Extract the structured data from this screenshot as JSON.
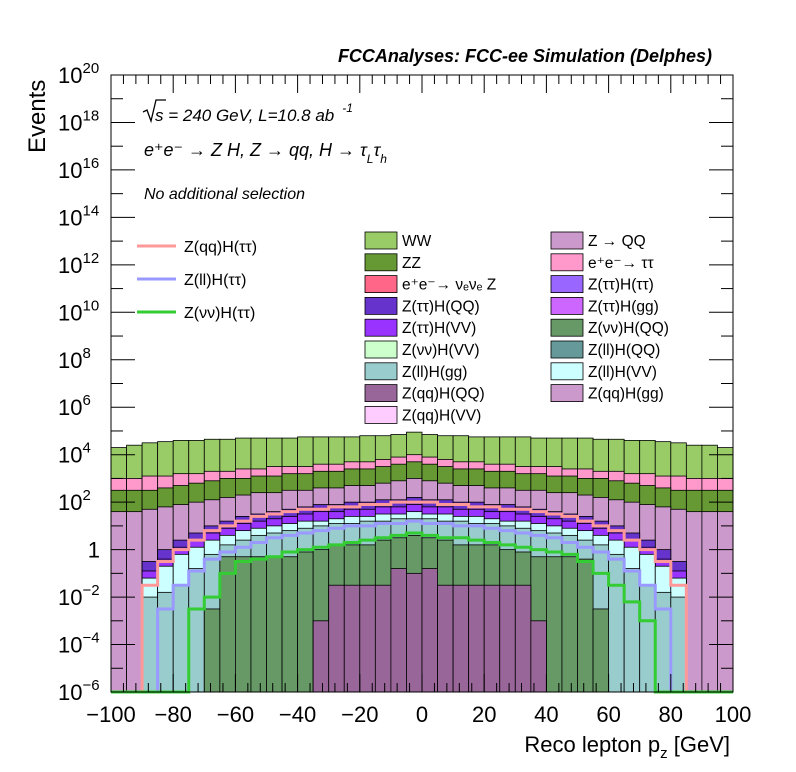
{
  "chart_data": {
    "type": "bar",
    "stacked": true,
    "title": "FCCAnalyses: FCC-ee Simulation (Delphes)",
    "xlabel_main": "Reco lepton p",
    "xlabel_sub": "z",
    "xlabel_unit": " [GeV]",
    "ylabel": "Events",
    "xlim": [
      -100,
      100
    ],
    "ylim": [
      1e-06,
      1e+20
    ],
    "yscale": "log",
    "x_ticks": [
      -100,
      -80,
      -60,
      -40,
      -20,
      0,
      20,
      40,
      60,
      80,
      100
    ],
    "x_tick_labels": [
      "−100",
      "−80",
      "−60",
      "−40",
      "−20",
      "0",
      "20",
      "40",
      "60",
      "80",
      "100"
    ],
    "y_tick_exponents": [
      -6,
      -4,
      -2,
      0,
      2,
      4,
      6,
      8,
      10,
      12,
      14,
      16,
      18,
      20
    ],
    "y_tick_labels": [
      {
        "base": "10",
        "exp": "−6"
      },
      {
        "base": "10",
        "exp": "−4"
      },
      {
        "base": "10",
        "exp": "−2"
      },
      {
        "base": "1",
        "exp": ""
      },
      {
        "base": "10",
        "exp": "2"
      },
      {
        "base": "10",
        "exp": "4"
      },
      {
        "base": "10",
        "exp": "6"
      },
      {
        "base": "10",
        "exp": "8"
      },
      {
        "base": "10",
        "exp": "10"
      },
      {
        "base": "10",
        "exp": "12"
      },
      {
        "base": "10",
        "exp": "14"
      },
      {
        "base": "10",
        "exp": "16"
      },
      {
        "base": "10",
        "exp": "18"
      },
      {
        "base": "10",
        "exp": "20"
      }
    ],
    "annotations": {
      "energy": "s = 240 GeV, L=10.8 ab",
      "lumi_exp": "-1",
      "process_line": "e⁺e⁻ → Z H, Z → qq, H → τ",
      "process_sub1": "L",
      "process_tau2": "τ",
      "process_sub2": "h",
      "selection": "No additional selection"
    },
    "legend_lines": [
      {
        "name": "Z(qq)H(ττ)",
        "color": "#ff9999"
      },
      {
        "name": "Z(ll)H(ττ)",
        "color": "#9999ff"
      },
      {
        "name": "Z(νν)H(ττ)",
        "color": "#33cc33"
      }
    ],
    "legend_fills": [
      {
        "name": "WW",
        "color": "#99cc66"
      },
      {
        "name": "ZZ",
        "color": "#669933"
      },
      {
        "name": "e⁺e⁻→ νₑνₑ Z",
        "color": "#ff6688"
      },
      {
        "name": "Z(ττ)H(QQ)",
        "color": "#6633cc"
      },
      {
        "name": "Z(ττ)H(VV)",
        "color": "#9933ff"
      },
      {
        "name": "Z(νν)H(VV)",
        "color": "#ccffcc"
      },
      {
        "name": "Z(ll)H(gg)",
        "color": "#99cccc"
      },
      {
        "name": "Z(qq)H(QQ)",
        "color": "#996699"
      },
      {
        "name": "Z(qq)H(VV)",
        "color": "#ffccff"
      },
      {
        "name": "Z → QQ",
        "color": "#cc99cc"
      },
      {
        "name": "e⁺e⁻→ ττ",
        "color": "#ff99cc"
      },
      {
        "name": "Z(ττ)H(ττ)",
        "color": "#9966ff"
      },
      {
        "name": "Z(ττ)H(gg)",
        "color": "#cc66ff"
      },
      {
        "name": "Z(νν)H(QQ)",
        "color": "#669966"
      },
      {
        "name": "Z(ll)H(QQ)",
        "color": "#669999"
      },
      {
        "name": "Z(ll)H(VV)",
        "color": "#ccffff"
      },
      {
        "name": "Z(qq)H(gg)",
        "color": "#cc99cc"
      }
    ],
    "bin_centers": [
      -97.5,
      -92.5,
      -87.5,
      -82.5,
      -77.5,
      -72.5,
      -67.5,
      -62.5,
      -57.5,
      -52.5,
      -47.5,
      -42.5,
      -37.5,
      -32.5,
      -27.5,
      -22.5,
      -17.5,
      -12.5,
      -7.5,
      -2.5,
      2.5,
      7.5,
      12.5,
      17.5,
      22.5,
      27.5,
      32.5,
      37.5,
      42.5,
      47.5,
      52.5,
      57.5,
      62.5,
      67.5,
      72.5,
      77.5,
      82.5,
      87.5,
      92.5,
      97.5
    ],
    "stack_bands_log10": [
      {
        "name": "Z(qq)H(QQ)",
        "top": [
          -6,
          -6,
          -6,
          -6,
          -6,
          -6,
          -6,
          -6,
          -6,
          -6,
          -6,
          -6,
          -6,
          -3,
          -1.5,
          -1.5,
          -1.5,
          -1.5,
          -0.8,
          -1.0,
          -0.8,
          -1.5,
          -1.5,
          -1.5,
          -1.5,
          -1.5,
          -1.5,
          -3,
          -6,
          -6,
          -6,
          -6,
          -6,
          -6,
          -6,
          -6,
          -6,
          -6,
          -6,
          -6
        ]
      },
      {
        "name": "Z(νν)H(QQ)",
        "top": [
          -6,
          -6,
          -6,
          -6,
          -6,
          -6,
          -2.5,
          -0.3,
          -0.3,
          -0.3,
          -0.3,
          -0.3,
          -0.1,
          0.0,
          0.2,
          0.2,
          0.2,
          0.4,
          0.5,
          0.6,
          0.5,
          0.4,
          0.2,
          0.2,
          0.2,
          0.0,
          -0.1,
          -0.3,
          -0.3,
          -0.3,
          -0.4,
          -2.5,
          -6,
          -6,
          -6,
          -6,
          -6,
          -6,
          -6,
          -6
        ]
      },
      {
        "name": "Z(ll)H(gg)",
        "top": [
          -6,
          -6,
          -2,
          -1.8,
          -1.5,
          -0.8,
          -0.2,
          0.2,
          0.4,
          0.6,
          0.7,
          0.8,
          0.9,
          1.0,
          1.1,
          1.1,
          1.2,
          1.2,
          1.3,
          1.3,
          1.3,
          1.2,
          1.2,
          1.1,
          1.1,
          1.0,
          0.9,
          0.8,
          0.7,
          0.6,
          0.4,
          0.2,
          -0.2,
          -0.8,
          -1.5,
          -1.8,
          -2,
          -6,
          -6,
          -6
        ]
      },
      {
        "name": "Z(ll)H(VV)",
        "top": [
          -6,
          -6,
          -1.2,
          -0.7,
          -0.2,
          0.1,
          0.4,
          0.6,
          0.8,
          0.9,
          1.0,
          1.1,
          1.2,
          1.2,
          1.3,
          1.4,
          1.4,
          1.5,
          1.5,
          1.6,
          1.5,
          1.5,
          1.4,
          1.4,
          1.3,
          1.2,
          1.2,
          1.1,
          1.0,
          0.9,
          0.8,
          0.6,
          0.4,
          0.1,
          -0.2,
          -0.7,
          -1.2,
          -6,
          -6,
          -6
        ]
      },
      {
        "name": "Z(ττ)H(VV)",
        "top": [
          -6,
          -6,
          -0.9,
          -0.4,
          0.1,
          0.4,
          0.7,
          0.9,
          1.1,
          1.2,
          1.3,
          1.4,
          1.5,
          1.6,
          1.6,
          1.7,
          1.7,
          1.8,
          1.8,
          1.9,
          1.8,
          1.8,
          1.7,
          1.7,
          1.6,
          1.6,
          1.5,
          1.4,
          1.3,
          1.2,
          1.1,
          0.9,
          0.7,
          0.4,
          0.1,
          -0.4,
          -0.9,
          -6,
          -6,
          -6
        ]
      },
      {
        "name": "Z(ττ)H(QQ)",
        "top": [
          -6,
          -6,
          -0.5,
          0.0,
          0.4,
          0.7,
          1.0,
          1.2,
          1.4,
          1.5,
          1.6,
          1.7,
          1.8,
          1.9,
          1.9,
          2.0,
          2.0,
          2.1,
          2.1,
          2.2,
          2.1,
          2.1,
          2.0,
          2.0,
          1.9,
          1.9,
          1.8,
          1.7,
          1.6,
          1.5,
          1.4,
          1.2,
          1.0,
          0.7,
          0.4,
          0.0,
          -0.5,
          -6,
          -6,
          -6
        ]
      },
      {
        "name": "Z → QQ",
        "top": [
          1.6,
          1.6,
          1.7,
          1.8,
          1.9,
          2.0,
          2.1,
          2.2,
          2.3,
          2.4,
          2.4,
          2.5,
          2.5,
          2.6,
          2.6,
          2.7,
          2.7,
          2.8,
          2.9,
          3.0,
          2.9,
          2.8,
          2.7,
          2.7,
          2.6,
          2.6,
          2.5,
          2.5,
          2.4,
          2.4,
          2.3,
          2.2,
          2.1,
          2.0,
          1.9,
          1.8,
          1.7,
          1.6,
          1.6,
          1.6
        ]
      },
      {
        "name": "ZZ",
        "top": [
          2.5,
          2.5,
          2.5,
          2.6,
          2.7,
          2.8,
          2.9,
          3.0,
          3.0,
          3.1,
          3.1,
          3.2,
          3.2,
          3.3,
          3.3,
          3.4,
          3.4,
          3.5,
          3.6,
          3.7,
          3.6,
          3.5,
          3.4,
          3.4,
          3.3,
          3.3,
          3.2,
          3.2,
          3.1,
          3.1,
          3.0,
          3.0,
          2.9,
          2.8,
          2.7,
          2.6,
          2.5,
          2.5,
          2.5,
          2.5
        ]
      },
      {
        "name": "e⁺e⁻→ ττ",
        "top": [
          3.0,
          3.0,
          3.1,
          3.1,
          3.2,
          3.2,
          3.3,
          3.3,
          3.4,
          3.4,
          3.5,
          3.5,
          3.5,
          3.6,
          3.6,
          3.7,
          3.7,
          3.8,
          3.9,
          4.0,
          3.9,
          3.8,
          3.7,
          3.7,
          3.6,
          3.6,
          3.5,
          3.5,
          3.5,
          3.4,
          3.4,
          3.3,
          3.3,
          3.2,
          3.2,
          3.1,
          3.1,
          3.0,
          3.0,
          3.0
        ]
      },
      {
        "name": "WW",
        "top": [
          4.3,
          4.4,
          4.5,
          4.55,
          4.6,
          4.6,
          4.65,
          4.65,
          4.7,
          4.7,
          4.7,
          4.7,
          4.75,
          4.75,
          4.75,
          4.75,
          4.8,
          4.8,
          4.85,
          4.95,
          4.85,
          4.8,
          4.8,
          4.75,
          4.75,
          4.75,
          4.75,
          4.7,
          4.7,
          4.7,
          4.7,
          4.65,
          4.65,
          4.6,
          4.6,
          4.55,
          4.5,
          4.4,
          4.4,
          4.3
        ]
      }
    ],
    "signal_lines_log10": [
      {
        "name": "Z(qq)H(ττ)",
        "values": [
          -6,
          -6,
          -1.5,
          -0.5,
          0.0,
          0.4,
          0.8,
          1.0,
          1.2,
          1.4,
          1.5,
          1.6,
          1.7,
          1.7,
          1.8,
          1.8,
          1.9,
          1.9,
          2.0,
          2.0,
          2.0,
          1.9,
          1.9,
          1.8,
          1.8,
          1.7,
          1.7,
          1.6,
          1.5,
          1.4,
          1.2,
          1.0,
          0.8,
          0.4,
          0.0,
          -0.5,
          -1.5,
          -6,
          -6,
          -6
        ]
      },
      {
        "name": "Z(ll)H(ττ)",
        "values": [
          -6,
          -6,
          -6,
          -2.5,
          -1.5,
          -0.9,
          -0.4,
          -0.1,
          0.1,
          0.3,
          0.5,
          0.6,
          0.7,
          0.8,
          0.9,
          1.0,
          1.0,
          1.1,
          1.1,
          1.2,
          1.1,
          1.1,
          1.0,
          1.0,
          0.9,
          0.8,
          0.7,
          0.6,
          0.5,
          0.3,
          0.1,
          -0.1,
          -0.4,
          -0.9,
          -1.5,
          -2.5,
          -6,
          -6,
          -6,
          -6
        ]
      },
      {
        "name": "Z(νν)H(ττ)",
        "values": [
          -6,
          -6,
          -6,
          -6,
          -6,
          -2.5,
          -2.0,
          -1.0,
          -0.5,
          -0.4,
          -0.3,
          -0.1,
          0.0,
          0.1,
          0.2,
          0.3,
          0.4,
          0.5,
          0.6,
          0.7,
          0.6,
          0.5,
          0.5,
          0.4,
          0.3,
          0.2,
          0.1,
          0.0,
          -0.1,
          -0.2,
          -0.5,
          -1.0,
          -1.5,
          -2.2,
          -3.0,
          -6,
          -6,
          -6,
          -6,
          -6
        ]
      }
    ]
  }
}
